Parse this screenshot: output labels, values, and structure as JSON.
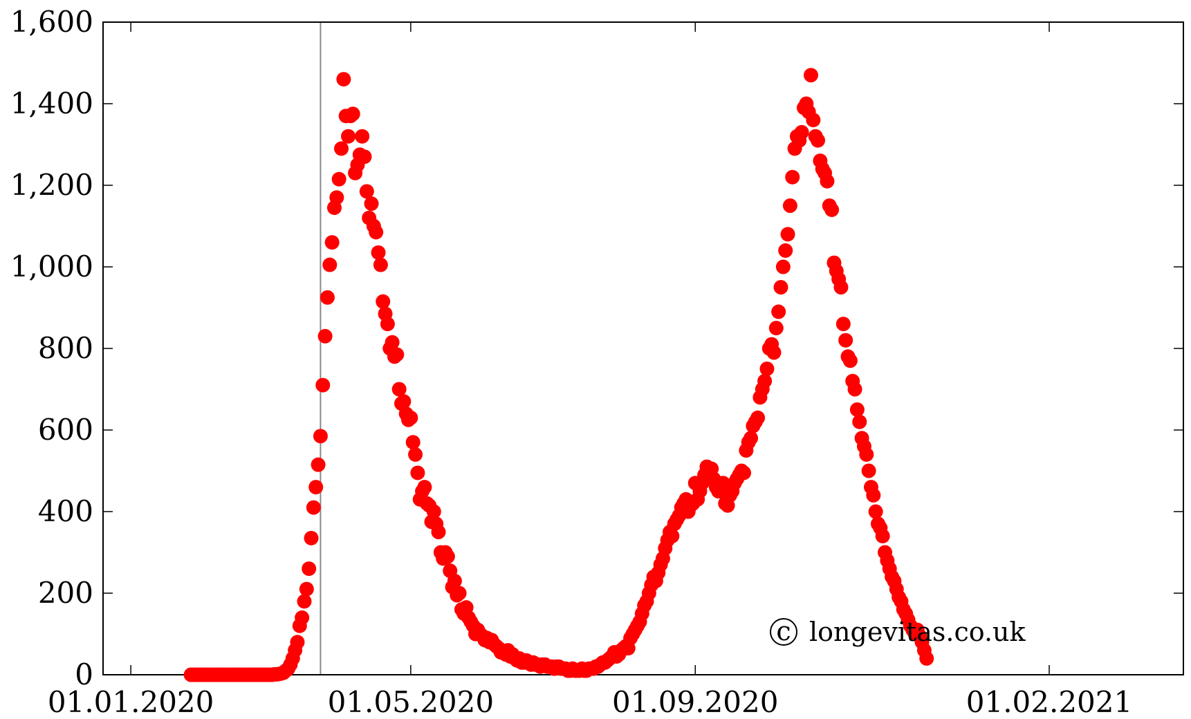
{
  "watermark": "longevitas.co.uk",
  "watermark_symbol": "c",
  "colors": {
    "points": "#ff0000",
    "axis": "#000000",
    "marker_line": "#888888"
  },
  "chart_data": {
    "type": "scatter",
    "title": "",
    "xlabel": "",
    "ylabel": "",
    "xlim": [
      "2019-12-20",
      "2021-03-31"
    ],
    "ylim": [
      0,
      1600
    ],
    "grid": false,
    "x_ticks": [
      "01.01.2020",
      "01.05.2020",
      "01.09.2020",
      "01.02.2021"
    ],
    "y_ticks": [
      "0",
      "200",
      "400",
      "600",
      "800",
      "1,000",
      "1,200",
      "1,400",
      "1,600"
    ],
    "x_tick_dates": [
      "2020-01-01",
      "2020-05-01",
      "2020-09-01",
      "2021-02-01"
    ],
    "y_tick_values": [
      0,
      200,
      400,
      600,
      800,
      1000,
      1200,
      1400,
      1600
    ],
    "reference_line_date": "2020-03-23",
    "series": [
      {
        "start_date": "2020-01-27",
        "values": [
          0,
          0,
          0,
          0,
          0,
          0,
          0,
          0,
          0,
          0,
          0,
          0,
          0,
          0,
          0,
          0,
          0,
          0,
          0,
          0,
          0,
          0,
          0,
          0,
          0,
          0,
          0,
          0,
          0,
          0,
          0,
          0,
          0,
          0,
          0,
          0,
          1,
          1,
          2,
          3,
          5,
          10,
          15,
          25,
          40,
          60,
          80,
          120,
          140,
          180,
          210,
          260,
          335,
          410,
          460,
          515,
          585,
          710,
          830,
          925,
          1005,
          1060,
          1145,
          1170,
          1215,
          1290,
          1460,
          1370,
          1320,
          1370,
          1375,
          1230,
          1250,
          1275,
          1320,
          1270,
          1185,
          1120,
          1155,
          1100,
          1085,
          1035,
          1005,
          915,
          885,
          860,
          800,
          815,
          780,
          785,
          700,
          665,
          670,
          640,
          625,
          630,
          570,
          540,
          495,
          430,
          450,
          460,
          420,
          415,
          375,
          400,
          370,
          350,
          300,
          285,
          300,
          290,
          255,
          215,
          230,
          195,
          200,
          160,
          150,
          165,
          140,
          130,
          120,
          100,
          110,
          100,
          95,
          85,
          90,
          80,
          85,
          75,
          70,
          65,
          55,
          55,
          50,
          60,
          45,
          50,
          40,
          35,
          40,
          30,
          30,
          35,
          30,
          25,
          30,
          25,
          25,
          20,
          25,
          25,
          20,
          20,
          20,
          15,
          20,
          20,
          15,
          15,
          15,
          10,
          10,
          15,
          10,
          10,
          10,
          15,
          10,
          10,
          15,
          15,
          15,
          20,
          20,
          25,
          30,
          30,
          35,
          40,
          45,
          55,
          45,
          50,
          60,
          65,
          70,
          65,
          90,
          100,
          110,
          120,
          130,
          150,
          170,
          180,
          200,
          220,
          240,
          230,
          250,
          270,
          285,
          310,
          330,
          350,
          340,
          370,
          380,
          390,
          410,
          420,
          430,
          400,
          415,
          420,
          470,
          430,
          450,
          470,
          490,
          510,
          500,
          505,
          480,
          460,
          450,
          460,
          470,
          420,
          415,
          440,
          450,
          470,
          480,
          490,
          500,
          495,
          550,
          570,
          580,
          610,
          620,
          630,
          680,
          700,
          720,
          750,
          800,
          810,
          790,
          850,
          890,
          950,
          1000,
          1040,
          1080,
          1150,
          1220,
          1290,
          1320,
          1310,
          1330,
          1390,
          1400,
          1380,
          1470,
          1360,
          1320,
          1310,
          1260,
          1240,
          1230,
          1210,
          1150,
          1140,
          1010,
          990,
          970,
          950,
          860,
          820,
          780,
          770,
          720,
          700,
          650,
          620,
          580,
          560,
          540,
          500,
          460,
          440,
          400,
          370,
          360,
          340,
          300,
          280,
          260,
          240,
          230,
          210,
          190,
          180,
          160,
          150,
          135,
          120,
          110,
          100,
          110,
          95,
          80,
          60,
          40
        ]
      }
    ]
  }
}
